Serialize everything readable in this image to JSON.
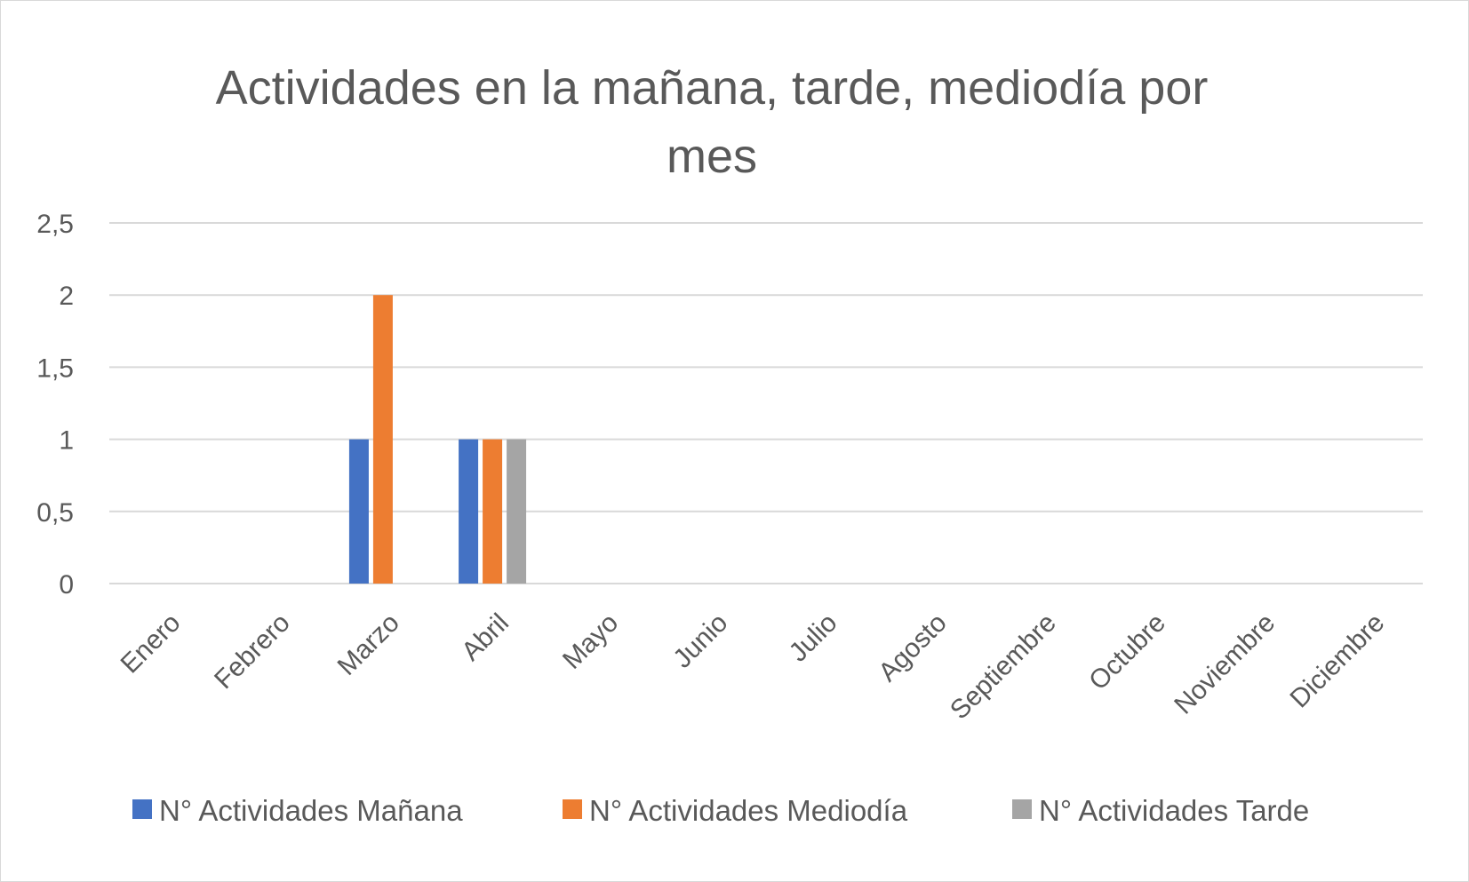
{
  "chart_data": {
    "type": "bar",
    "title": "Actividades en la mañana, tarde, mediodía por mes",
    "xlabel": "",
    "ylabel": "",
    "categories": [
      "Enero",
      "Febrero",
      "Marzo",
      "Abril",
      "Mayo",
      "Junio",
      "Julio",
      "Agosto",
      "Septiembre",
      "Octubre",
      "Noviembre",
      "Diciembre"
    ],
    "series": [
      {
        "name": "N° Actividades Mañana",
        "color": "#4472c4",
        "values": [
          null,
          null,
          1,
          1,
          null,
          null,
          null,
          null,
          null,
          null,
          null,
          null
        ]
      },
      {
        "name": "N° Actividades Mediodía",
        "color": "#ed7d31",
        "values": [
          null,
          null,
          2,
          1,
          null,
          null,
          null,
          null,
          null,
          null,
          null,
          null
        ]
      },
      {
        "name": "N° Actividades Tarde",
        "color": "#a5a5a5",
        "values": [
          null,
          null,
          null,
          1,
          null,
          null,
          null,
          null,
          null,
          null,
          null,
          null
        ]
      }
    ],
    "ylim": [
      0,
      2.5
    ],
    "yticks": [
      "0",
      "0,5",
      "1",
      "1,5",
      "2",
      "2,5"
    ],
    "grid": true,
    "legend_position": "bottom"
  }
}
